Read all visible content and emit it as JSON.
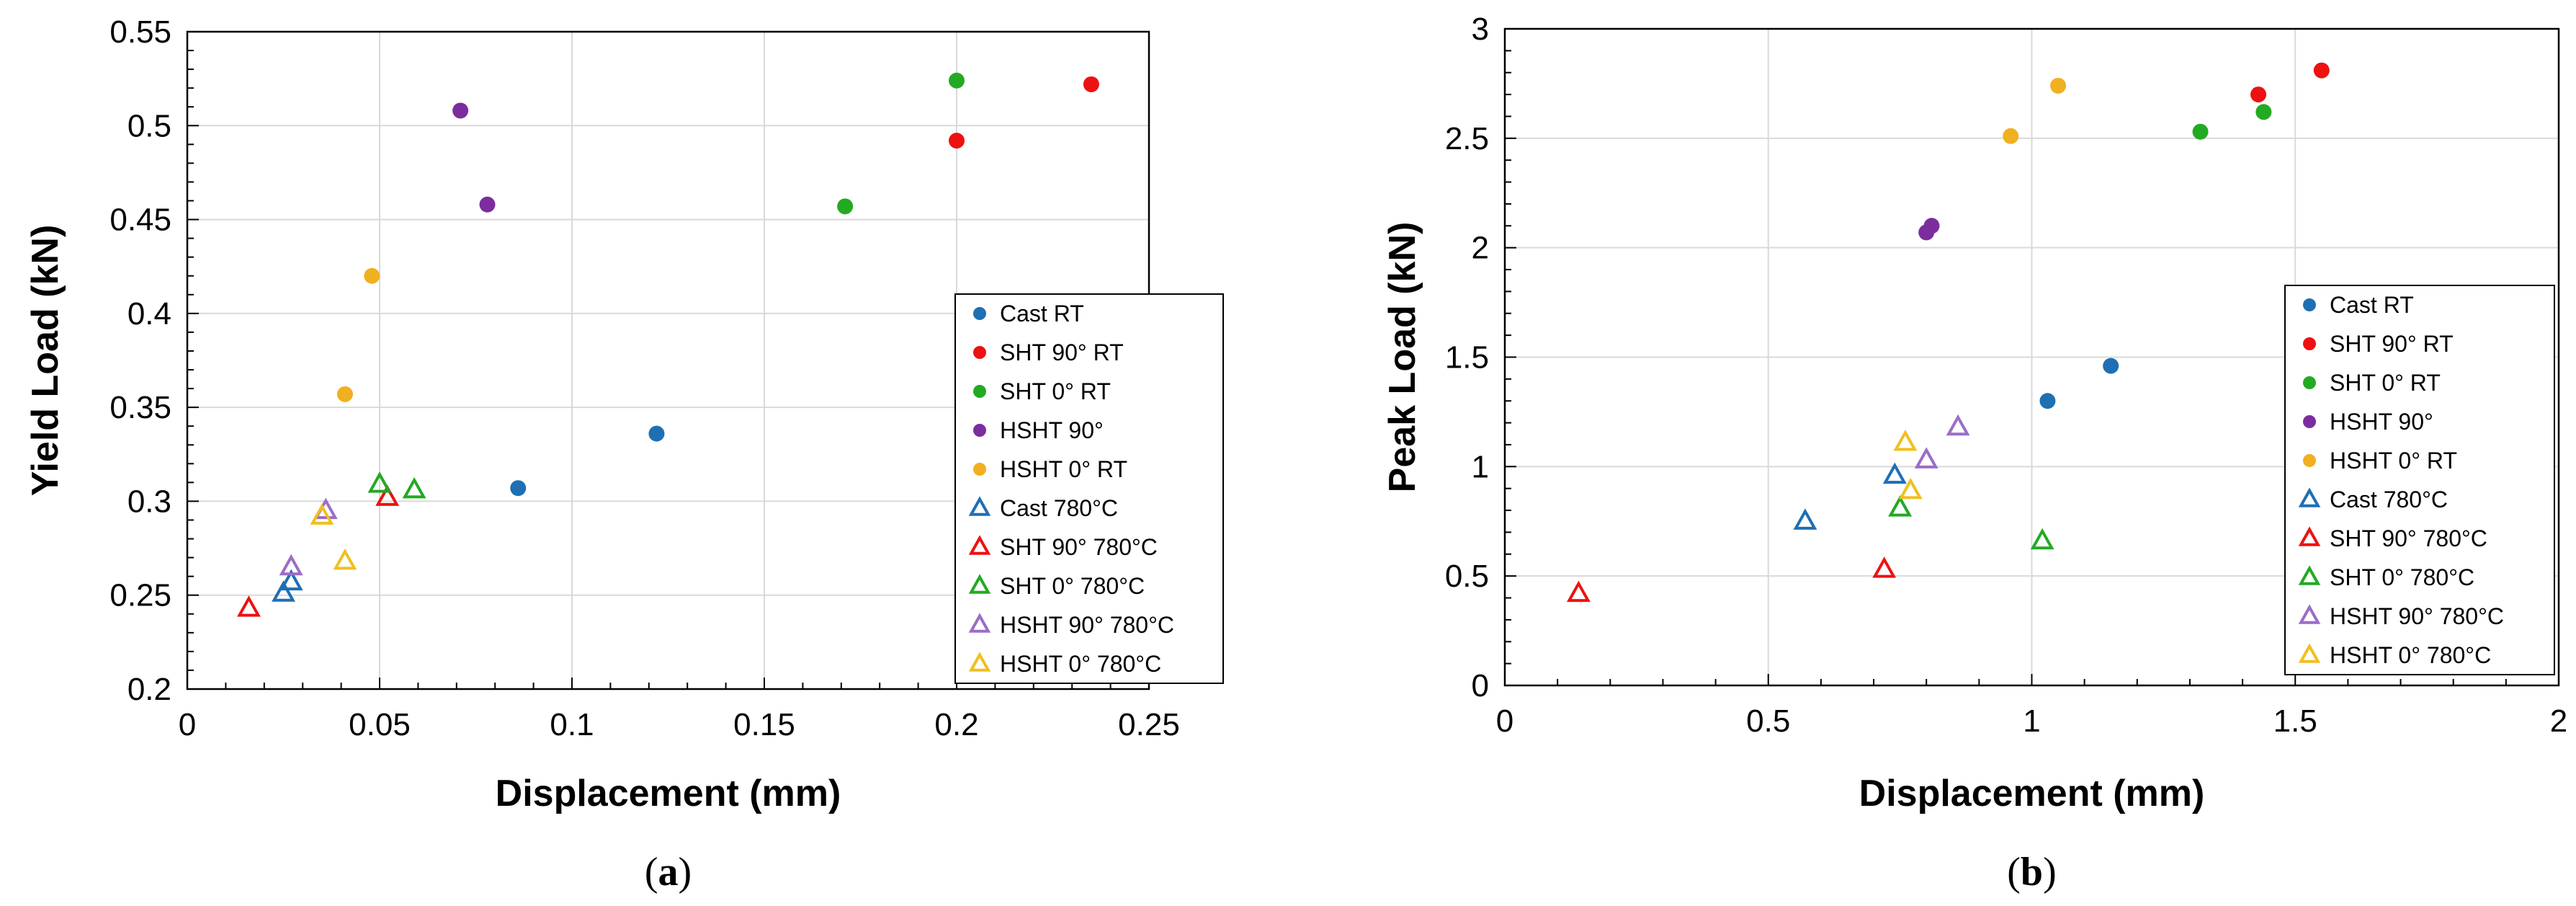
{
  "chart_data": [
    {
      "type": "scatter",
      "panel": "(a)",
      "panel_letter": "a",
      "xlabel": "Displacement (mm)",
      "ylabel": "Yield Load (kN)",
      "xlim": [
        0,
        0.25
      ],
      "ylim": [
        0.2,
        0.55
      ],
      "xticks": [
        0,
        0.05,
        0.1,
        0.15,
        0.2,
        0.25
      ],
      "xtick_labels": [
        "0",
        "0.05",
        "0.1",
        "0.15",
        "0.2",
        "0.25"
      ],
      "yticks": [
        0.2,
        0.25,
        0.3,
        0.35,
        0.4,
        0.45,
        0.5,
        0.55
      ],
      "ytick_labels": [
        "0.2",
        "0.25",
        "0.3",
        "0.35",
        "0.4",
        "0.45",
        "0.5",
        "0.55"
      ],
      "grid": true,
      "legend_position": "right",
      "series": [
        {
          "name": "Cast RT",
          "marker": "circle",
          "color": "#1f6fb4",
          "points": [
            [
              0.086,
              0.307
            ],
            [
              0.122,
              0.336
            ]
          ]
        },
        {
          "name": "SHT 90° RT",
          "marker": "circle",
          "color": "#ee1111",
          "points": [
            [
              0.2,
              0.492
            ],
            [
              0.235,
              0.522
            ]
          ]
        },
        {
          "name": "SHT 0° RT",
          "marker": "circle",
          "color": "#22aa22",
          "points": [
            [
              0.171,
              0.457
            ],
            [
              0.2,
              0.524
            ]
          ]
        },
        {
          "name": "HSHT 90°",
          "marker": "circle",
          "color": "#7b2d9e",
          "points": [
            [
              0.071,
              0.508
            ],
            [
              0.078,
              0.458
            ]
          ]
        },
        {
          "name": "HSHT 0° RT",
          "marker": "circle",
          "color": "#f0b020",
          "points": [
            [
              0.041,
              0.357
            ],
            [
              0.048,
              0.42
            ]
          ]
        },
        {
          "name": "Cast 780°C",
          "marker": "triangle",
          "color": "#1f6fb4",
          "points": [
            [
              0.025,
              0.251
            ],
            [
              0.027,
              0.257
            ]
          ]
        },
        {
          "name": "SHT 90° 780°C",
          "marker": "triangle",
          "color": "#ee1111",
          "points": [
            [
              0.016,
              0.243
            ],
            [
              0.052,
              0.302
            ]
          ]
        },
        {
          "name": "SHT 0° 780°C",
          "marker": "triangle",
          "color": "#22aa22",
          "points": [
            [
              0.05,
              0.309
            ],
            [
              0.059,
              0.306
            ]
          ]
        },
        {
          "name": "HSHT 90° 780°C",
          "marker": "triangle",
          "color": "#9b6dc8",
          "points": [
            [
              0.027,
              0.265
            ],
            [
              0.036,
              0.295
            ]
          ]
        },
        {
          "name": "HSHT 0° 780°C",
          "marker": "triangle",
          "color": "#f0c020",
          "points": [
            [
              0.035,
              0.292
            ],
            [
              0.041,
              0.268
            ]
          ]
        }
      ]
    },
    {
      "type": "scatter",
      "panel": "(b)",
      "panel_letter": "b",
      "xlabel": "Displacement (mm)",
      "ylabel": "Peak Load (kN)",
      "xlim": [
        0,
        2
      ],
      "ylim": [
        0,
        3
      ],
      "xticks": [
        0,
        0.5,
        1,
        1.5,
        2
      ],
      "xtick_labels": [
        "0",
        "0.5",
        "1",
        "1.5",
        "2"
      ],
      "yticks": [
        0,
        0.5,
        1,
        1.5,
        2,
        2.5,
        3
      ],
      "ytick_labels": [
        "0",
        "0.5",
        "1",
        "1.5",
        "2",
        "2.5",
        "3"
      ],
      "grid": true,
      "legend_position": "right",
      "series": [
        {
          "name": "Cast RT",
          "marker": "circle",
          "color": "#1f6fb4",
          "points": [
            [
              1.03,
              1.3
            ],
            [
              1.15,
              1.46
            ]
          ]
        },
        {
          "name": "SHT 90° RT",
          "marker": "circle",
          "color": "#ee1111",
          "points": [
            [
              1.43,
              2.7
            ],
            [
              1.55,
              2.81
            ]
          ]
        },
        {
          "name": "SHT 0° RT",
          "marker": "circle",
          "color": "#22aa22",
          "points": [
            [
              1.32,
              2.53
            ],
            [
              1.44,
              2.62
            ]
          ]
        },
        {
          "name": "HSHT 90°",
          "marker": "circle",
          "color": "#7b2d9e",
          "points": [
            [
              0.8,
              2.07
            ],
            [
              0.81,
              2.1
            ]
          ]
        },
        {
          "name": "HSHT 0° RT",
          "marker": "circle",
          "color": "#f0b020",
          "points": [
            [
              0.96,
              2.51
            ],
            [
              1.05,
              2.74
            ]
          ]
        },
        {
          "name": "Cast 780°C",
          "marker": "triangle",
          "color": "#1f6fb4",
          "points": [
            [
              0.57,
              0.75
            ],
            [
              0.74,
              0.96
            ]
          ]
        },
        {
          "name": "SHT 90° 780°C",
          "marker": "triangle",
          "color": "#ee1111",
          "points": [
            [
              0.14,
              0.42
            ],
            [
              0.72,
              0.53
            ]
          ]
        },
        {
          "name": "SHT 0° 780°C",
          "marker": "triangle",
          "color": "#22aa22",
          "points": [
            [
              0.75,
              0.81
            ],
            [
              1.02,
              0.66
            ]
          ]
        },
        {
          "name": "HSHT 90° 780°C",
          "marker": "triangle",
          "color": "#9b6dc8",
          "points": [
            [
              0.8,
              1.03
            ],
            [
              0.86,
              1.18
            ]
          ]
        },
        {
          "name": "HSHT 0° 780°C",
          "marker": "triangle",
          "color": "#f0c020",
          "points": [
            [
              0.76,
              1.11
            ],
            [
              0.77,
              0.89
            ]
          ]
        }
      ]
    }
  ]
}
